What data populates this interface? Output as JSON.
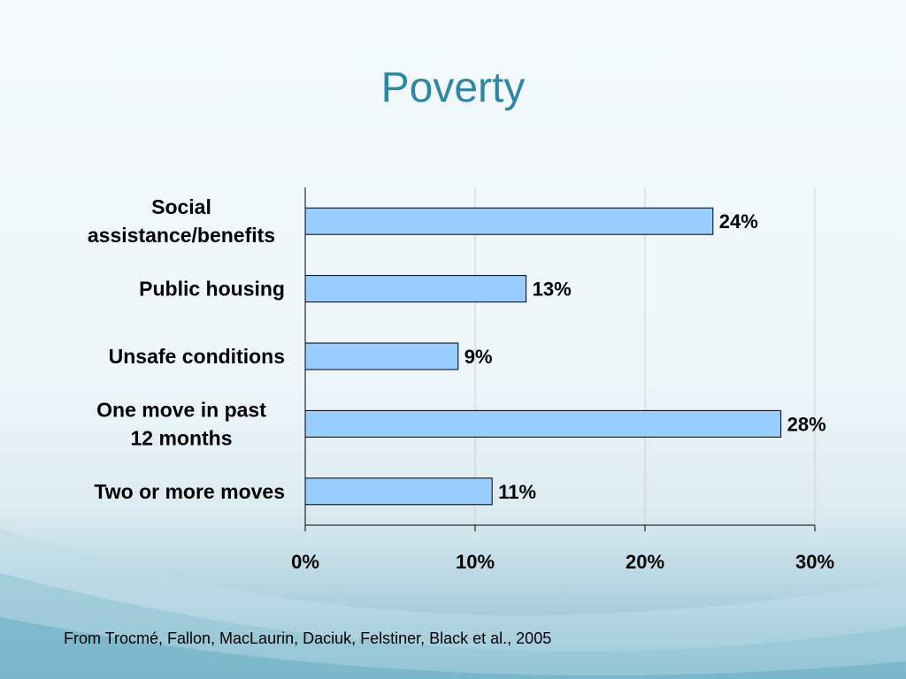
{
  "slide": {
    "title": "Poverty",
    "source": "From Trocmé, Fallon, MacLaurin, Daciuk, Felstiner, Black et al., 2005"
  },
  "colors": {
    "bar_fill": "#99ccff",
    "bar_stroke": "#000000",
    "title": "#2f87a4",
    "gridline": "#cfcfcf"
  },
  "chart_data": {
    "type": "bar",
    "orientation": "horizontal",
    "categories": [
      [
        "Social",
        "assistance/benefits"
      ],
      [
        "Public housing"
      ],
      [
        "Unsafe conditions"
      ],
      [
        "One move in past",
        "12 months"
      ],
      [
        "Two or more moves"
      ]
    ],
    "values": [
      24,
      13,
      9,
      28,
      11
    ],
    "value_labels": [
      "24%",
      "13%",
      "9%",
      "28%",
      "11%"
    ],
    "xlim": [
      0,
      30
    ],
    "xticks": [
      0,
      10,
      20,
      30
    ],
    "xtick_labels": [
      "0%",
      "10%",
      "20%",
      "30%"
    ],
    "grid": true,
    "legend": "none"
  }
}
